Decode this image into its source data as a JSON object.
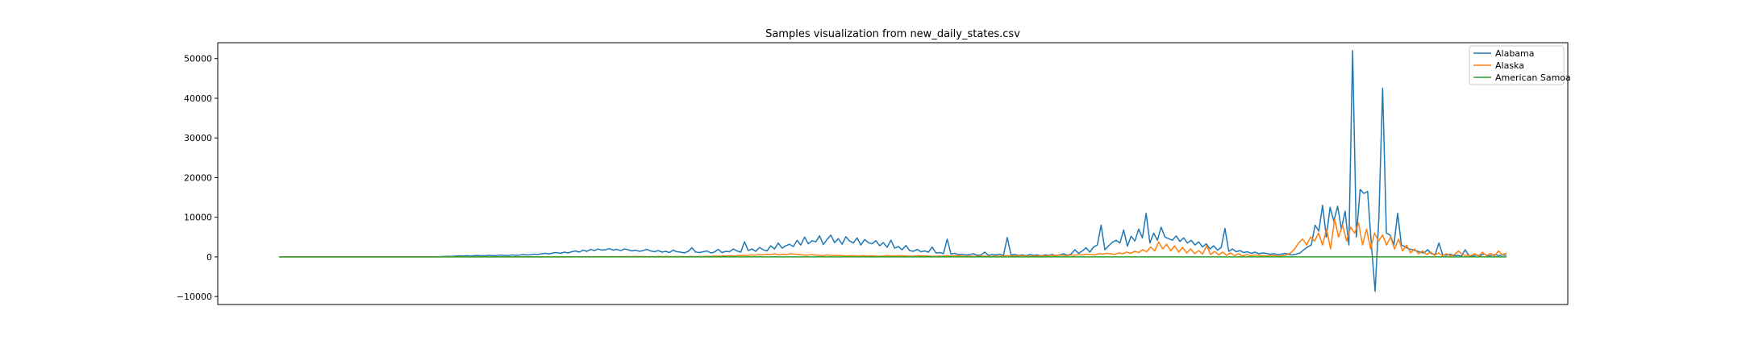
{
  "chart_data": {
    "type": "line",
    "title": "Samples visualization from new_daily_states.csv",
    "xlabel": "",
    "ylabel": "",
    "x_ticks_shown": false,
    "ylim": [
      -12000,
      54000
    ],
    "y_ticks": [
      -10000,
      0,
      10000,
      20000,
      30000,
      40000,
      50000
    ],
    "y_tick_labels": [
      "−10000",
      "0",
      "10000",
      "20000",
      "30000",
      "40000",
      "50000"
    ],
    "grid": false,
    "legend": "upper-right",
    "series": [
      {
        "name": "Alabama",
        "color": "#1f77b4",
        "values": [
          0,
          0,
          0,
          0,
          0,
          0,
          0,
          0,
          0,
          0,
          0,
          0,
          0,
          0,
          0,
          0,
          0,
          0,
          0,
          0,
          0,
          0,
          0,
          0,
          0,
          0,
          0,
          0,
          0,
          0,
          0,
          0,
          0,
          0,
          0,
          0,
          0,
          0,
          0,
          0,
          0,
          0,
          0,
          50,
          100,
          150,
          100,
          200,
          250,
          200,
          300,
          200,
          300,
          350,
          250,
          300,
          400,
          300,
          350,
          450,
          400,
          300,
          500,
          400,
          450,
          600,
          500,
          550,
          700,
          600,
          800,
          900,
          750,
          1000,
          1100,
          900,
          1200,
          1000,
          1300,
          1500,
          1200,
          1700,
          1400,
          1900,
          1600,
          2000,
          1700,
          1800,
          2100,
          1700,
          1900,
          1600,
          2000,
          1800,
          1500,
          1700,
          1400,
          1600,
          1900,
          1500,
          1300,
          1600,
          1200,
          1400,
          1100,
          1700,
          1300,
          1200,
          1000,
          1400,
          2300,
          1200,
          1100,
          1300,
          1500,
          1000,
          1200,
          1900,
          1100,
          1400,
          1300,
          2000,
          1500,
          1200,
          3800,
          1600,
          2000,
          1400,
          2400,
          1800,
          1500,
          2800,
          2000,
          3500,
          2200,
          2800,
          3200,
          2600,
          4200,
          3000,
          5000,
          3300,
          4100,
          3800,
          5300,
          3100,
          4400,
          5500,
          3600,
          4600,
          3200,
          5100,
          4000,
          3500,
          4800,
          3000,
          4400,
          3600,
          3300,
          4100,
          2800,
          3600,
          2400,
          4200,
          2200,
          2600,
          1800,
          2900,
          1600,
          1400,
          1900,
          1300,
          1500,
          1200,
          2500,
          1000,
          1100,
          800,
          4500,
          700,
          900,
          600,
          700,
          500,
          600,
          800,
          400,
          500,
          1200,
          400,
          600,
          500,
          700,
          400,
          4900,
          500,
          600,
          400,
          500,
          300,
          600,
          400,
          500,
          300,
          500,
          400,
          600,
          300,
          500,
          800,
          400,
          700,
          1800,
          900,
          1500,
          2300,
          1200,
          2500,
          3000,
          8000,
          1800,
          2800,
          3700,
          4200,
          3500,
          6800,
          2700,
          5200,
          4000,
          7000,
          4800,
          11000,
          3500,
          6000,
          4200,
          7500,
          5000,
          4600,
          4200,
          5300,
          3900,
          4800,
          3500,
          4200,
          3000,
          3800,
          2500,
          3300,
          2000,
          2800,
          1700,
          2400,
          7200,
          1400,
          2000,
          1300,
          1600,
          1100,
          1300,
          900,
          1200,
          800,
          1000,
          900,
          700,
          800,
          600,
          700,
          900,
          600,
          500,
          700,
          1000,
          1800,
          2500,
          3000,
          8000,
          6500,
          13000,
          5000,
          12500,
          9000,
          12800,
          7000,
          11500,
          3000,
          52000,
          5000,
          17000,
          16000,
          16500,
          3000,
          -8700,
          10000,
          42500,
          6000,
          5500,
          3000,
          11000,
          3000,
          2500,
          2000,
          1800,
          1500,
          1200,
          1000,
          1800,
          800,
          600,
          3500,
          500,
          400,
          700,
          300,
          400,
          200,
          1800,
          300,
          200,
          500,
          300,
          800,
          200,
          400,
          600,
          300,
          500,
          400
        ]
      },
      {
        "name": "Alaska",
        "color": "#ff7f0e",
        "values": [
          0,
          0,
          0,
          0,
          0,
          0,
          0,
          0,
          0,
          0,
          0,
          0,
          0,
          0,
          0,
          0,
          0,
          0,
          0,
          0,
          0,
          0,
          0,
          0,
          0,
          0,
          0,
          0,
          0,
          0,
          0,
          0,
          0,
          0,
          0,
          0,
          0,
          0,
          0,
          0,
          0,
          0,
          0,
          0,
          0,
          0,
          0,
          0,
          0,
          0,
          0,
          0,
          0,
          0,
          0,
          0,
          0,
          0,
          0,
          0,
          0,
          0,
          0,
          0,
          0,
          0,
          0,
          0,
          0,
          10,
          0,
          20,
          10,
          30,
          20,
          40,
          30,
          50,
          40,
          60,
          50,
          70,
          40,
          80,
          60,
          90,
          50,
          100,
          70,
          120,
          80,
          100,
          60,
          90,
          70,
          110,
          80,
          100,
          60,
          90,
          70,
          80,
          60,
          100,
          70,
          120,
          80,
          150,
          100,
          200,
          150,
          250,
          180,
          300,
          200,
          350,
          400,
          300,
          500,
          400,
          600,
          500,
          700,
          600,
          800,
          500,
          700,
          600,
          800,
          700,
          600,
          500,
          400,
          600,
          500,
          400,
          300,
          500,
          400,
          300,
          400,
          300,
          200,
          300,
          250,
          200,
          300,
          200,
          250,
          200,
          150,
          200,
          300,
          250,
          200,
          300,
          250,
          200,
          150,
          200,
          300,
          250,
          200,
          150,
          100,
          200,
          150,
          300,
          200,
          250,
          300,
          200,
          150,
          200,
          100,
          150,
          200,
          150,
          100,
          200,
          150,
          200,
          300,
          250,
          200,
          300,
          250,
          200,
          150,
          200,
          250,
          300,
          200,
          400,
          300,
          500,
          400,
          300,
          500,
          400,
          600,
          500,
          700,
          600,
          500,
          800,
          700,
          900,
          800,
          600,
          1000,
          800,
          1200,
          900,
          1400,
          1100,
          1800,
          1300,
          2500,
          1500,
          3800,
          2000,
          3200,
          1500,
          2800,
          1200,
          2400,
          1000,
          2000,
          800,
          1600,
          700,
          2800,
          600,
          1400,
          500,
          1200,
          400,
          1000,
          300,
          800,
          200,
          600,
          300,
          500,
          400,
          300,
          200,
          400,
          300,
          200,
          300,
          500,
          1000,
          2000,
          3500,
          4500,
          3000,
          5000,
          4000,
          6000,
          3000,
          7000,
          2000,
          9500,
          5000,
          8000,
          4000,
          7500,
          6000,
          8500,
          3000,
          7000,
          2000,
          6000,
          4000,
          5500,
          3000,
          5000,
          2000,
          4500,
          1500,
          3000,
          1000,
          2000,
          800,
          1500,
          600,
          1200,
          400,
          1000,
          300,
          800,
          200,
          600,
          1500,
          500,
          400,
          300,
          800,
          200,
          1200,
          300,
          900,
          200,
          1500,
          500,
          1000
        ]
      },
      {
        "name": "American Samoa",
        "color": "#2ca02c",
        "values": [
          0,
          0,
          0,
          0,
          0,
          0,
          0,
          0,
          0,
          0,
          0,
          0,
          0,
          0,
          0,
          0,
          0,
          0,
          0,
          0,
          0,
          0,
          0,
          0,
          0,
          0,
          0,
          0,
          0,
          0,
          0,
          0,
          0,
          0,
          0,
          0,
          0,
          0,
          0,
          0,
          0,
          0,
          0,
          0,
          0,
          0,
          0,
          0,
          0,
          0,
          0,
          0,
          0,
          0,
          0,
          0,
          0,
          0,
          0,
          0,
          0,
          0,
          0,
          0,
          0,
          0,
          0,
          0,
          0,
          0,
          0,
          0,
          0,
          0,
          0,
          0,
          0,
          0,
          0,
          0,
          0,
          0,
          0,
          0,
          0,
          0,
          0,
          0,
          0,
          0,
          0,
          0,
          0,
          0,
          0,
          0,
          0,
          0,
          0,
          0,
          0,
          0,
          0,
          0,
          0,
          0,
          0,
          0,
          0,
          0,
          0,
          0,
          0,
          0,
          0,
          0,
          0,
          0,
          0,
          0,
          0,
          0,
          0,
          0,
          0,
          0,
          0,
          0,
          0,
          0,
          0,
          0,
          0,
          0,
          0,
          0,
          0,
          0,
          0,
          0,
          0,
          0,
          0,
          0,
          0,
          0,
          0,
          0,
          0,
          0,
          0,
          0,
          0,
          0,
          0,
          0,
          0,
          0,
          0,
          0,
          0,
          0,
          0,
          0,
          0,
          0,
          0,
          0,
          0,
          0,
          0,
          0,
          0,
          0,
          0,
          0,
          0,
          0,
          0,
          0,
          0,
          0,
          0,
          0,
          0,
          0,
          0,
          0,
          0,
          0,
          0,
          0,
          0,
          0,
          0,
          0,
          0,
          0,
          0,
          0,
          0,
          0,
          0,
          0,
          0,
          0,
          0,
          0,
          0,
          0,
          0,
          0,
          0,
          0,
          0,
          0,
          0,
          0,
          0,
          0,
          0,
          0,
          0,
          0,
          0,
          0,
          0,
          0,
          0,
          0,
          0,
          0,
          0,
          0,
          0,
          0,
          0,
          0,
          0,
          0,
          0,
          0,
          0,
          0,
          0,
          0,
          0,
          0,
          0,
          0,
          0,
          0,
          0,
          0,
          0,
          0,
          0,
          0,
          0,
          0,
          0,
          0,
          0,
          0,
          0,
          0,
          0,
          0,
          0,
          0,
          0,
          0,
          0,
          0,
          0,
          0,
          0,
          0,
          0,
          0,
          0,
          0,
          0,
          0,
          0,
          0,
          0,
          0,
          0,
          0,
          0,
          0,
          0,
          0,
          0,
          0,
          0,
          0,
          0,
          0,
          0,
          0,
          0,
          0,
          0,
          0,
          0,
          0,
          0,
          0,
          0,
          0,
          0,
          0,
          0,
          0,
          0,
          0,
          0,
          0,
          0,
          0,
          0,
          0,
          0,
          0,
          0,
          0,
          0,
          0,
          0,
          0,
          0,
          0,
          0,
          0,
          0,
          0,
          0,
          0,
          0,
          0,
          0,
          0,
          0,
          0,
          0,
          0,
          0,
          0
        ]
      }
    ]
  }
}
